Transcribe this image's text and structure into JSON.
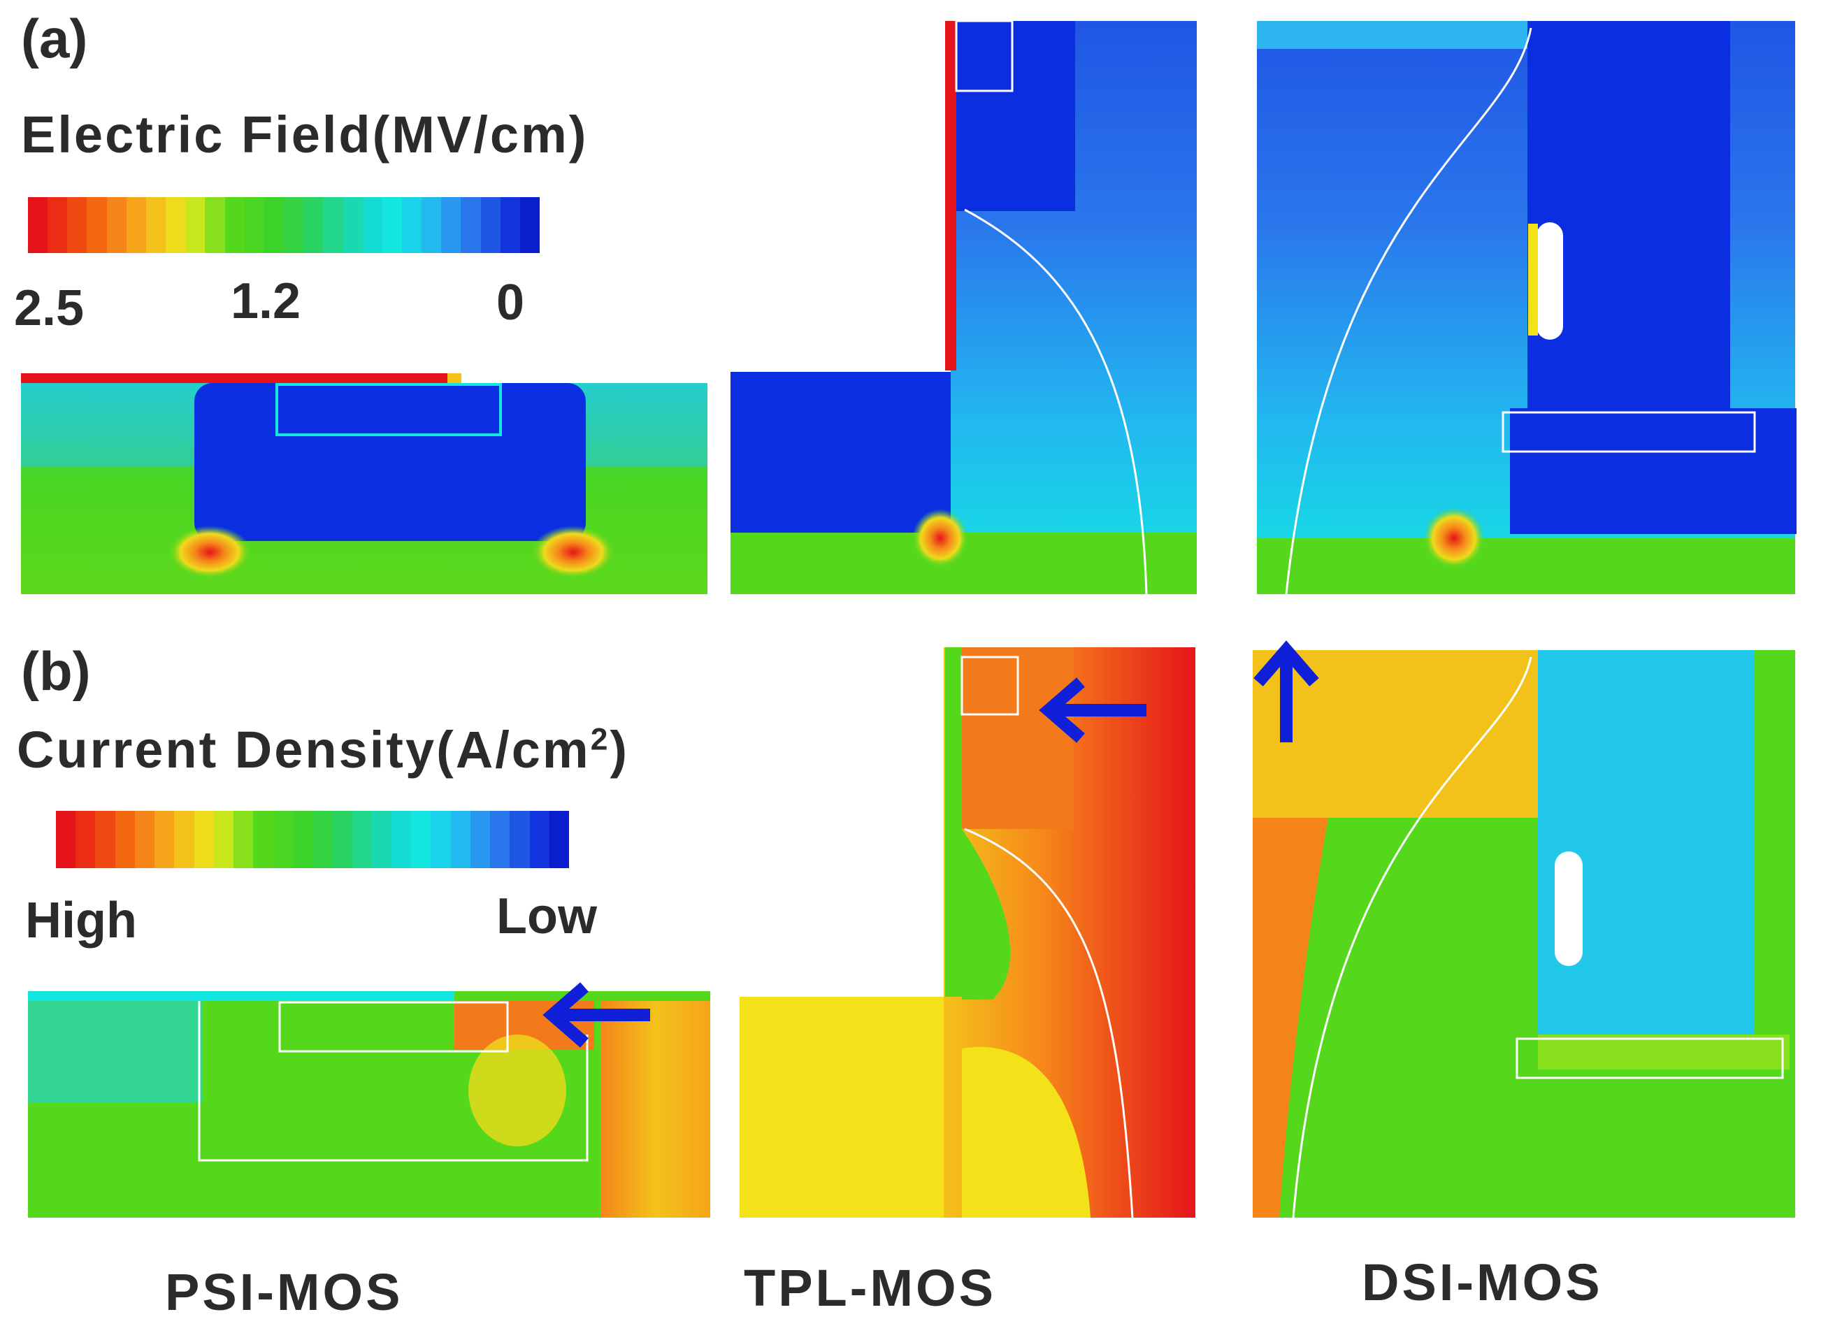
{
  "panel_a": {
    "label": "(a)",
    "legend_title": "Electric Field(MV/cm)",
    "ticks": [
      "2.5",
      "1.2",
      "0"
    ]
  },
  "panel_b": {
    "label": "(b)",
    "legend_title_main": "Current Density(A/cm",
    "legend_title_sup": "2",
    "legend_title_end": ")",
    "ticks": [
      "High",
      "Low"
    ]
  },
  "devices": [
    "PSI-MOS",
    "TPL-MOS",
    "DSI-MOS"
  ],
  "colors": {
    "red": "#e5141a",
    "orange": "#f27a1a",
    "yellow": "#f3e21a",
    "green": "#55d81c",
    "cyan": "#13e5e0",
    "light_blue": "#2eb6f0",
    "blue": "#0a2ee0",
    "arrow": "#1020d8"
  },
  "colorbar_stops": [
    "#e5141a",
    "#ea2d14",
    "#f04a12",
    "#f46812",
    "#f6861a",
    "#f6a41a",
    "#f3c21a",
    "#eedb1c",
    "#c8e61c",
    "#88df1c",
    "#55d81c",
    "#48d622",
    "#3cd42a",
    "#34d442",
    "#2ad462",
    "#22d68a",
    "#1ad8b0",
    "#15dcd2",
    "#13e5e0",
    "#1ad2ea",
    "#22b8f0",
    "#2a98f0",
    "#2a76ec",
    "#1f56e4",
    "#1234dc",
    "#0a1ecc"
  ]
}
